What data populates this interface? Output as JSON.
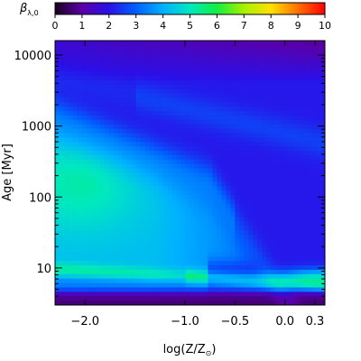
{
  "chart_data": {
    "type": "heatmap",
    "title": "",
    "colorbar": {
      "label": "β",
      "label_sub": "λ,0",
      "range": [
        0,
        10
      ],
      "ticks": [
        0,
        1,
        2,
        3,
        4,
        5,
        6,
        7,
        8,
        9,
        10
      ],
      "tick_labels": [
        "0",
        "1",
        "2",
        "3",
        "4",
        "5",
        "6",
        "7",
        "8",
        "9",
        "10"
      ],
      "colors": [
        "#1a0020",
        "#5a00a8",
        "#2a10e8",
        "#0060ff",
        "#00b0ff",
        "#00e8c0",
        "#10f040",
        "#a8f000",
        "#ffe000",
        "#ff7000",
        "#ff0000"
      ]
    },
    "xaxis": {
      "label_main": "log(Z/Z",
      "label_sub": "⊙",
      "label_close": ")",
      "range": [
        -2.3,
        0.4
      ],
      "ticks": [
        -2.0,
        -1.0,
        -0.5,
        0.0,
        0.3
      ],
      "tick_labels": [
        "−2.0",
        "−1.0",
        "−0.5",
        "0.0",
        "0.3"
      ]
    },
    "yaxis": {
      "label_main": "Age ",
      "label_unit": "[Myr]",
      "scale": "log",
      "range": [
        3,
        16000
      ],
      "ticks": [
        10,
        100,
        1000,
        10000
      ],
      "tick_labels": [
        "10",
        "100",
        "1000",
        "10000"
      ],
      "minor_ticks": [
        4,
        5,
        6,
        7,
        8,
        9,
        20,
        30,
        40,
        50,
        60,
        70,
        80,
        90,
        200,
        300,
        400,
        500,
        600,
        700,
        800,
        900,
        2000,
        3000,
        4000,
        5000,
        6000,
        7000,
        8000,
        9000
      ]
    },
    "grid": false
  }
}
